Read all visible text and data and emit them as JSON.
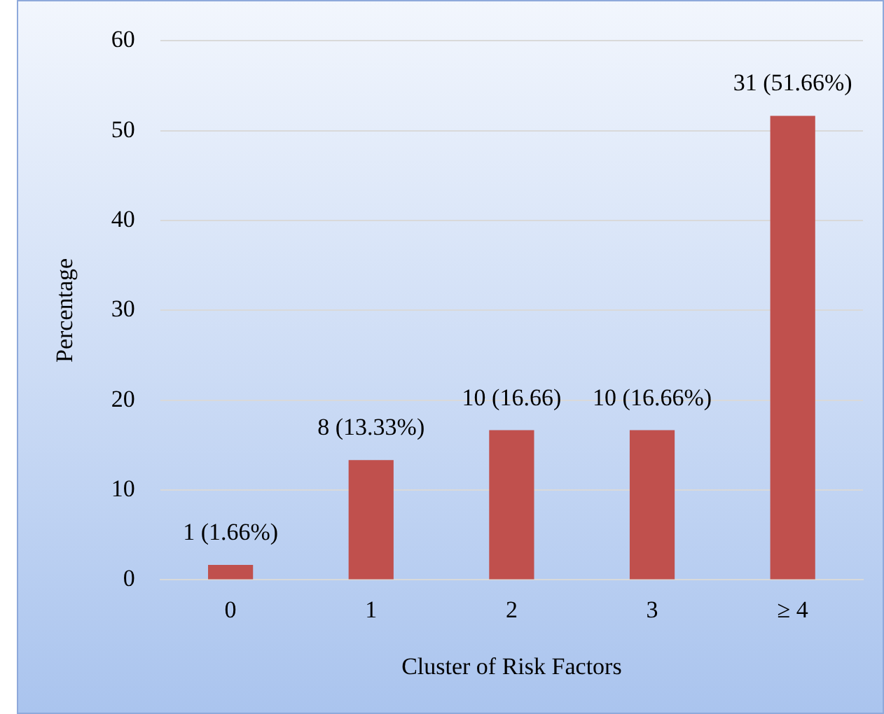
{
  "chart_data": {
    "type": "bar",
    "xlabel": "Cluster of Risk Factors",
    "ylabel": "Percentage",
    "categories": [
      "0",
      "1",
      "2",
      "3",
      "≥ 4"
    ],
    "values": [
      1.66,
      13.33,
      16.66,
      16.66,
      51.66
    ],
    "value_labels": [
      "1 (1.66%)",
      "8 (13.33%)",
      "10 (16.66)",
      "10 (16.66%)",
      "31 (51.66%)"
    ],
    "color": "#c0504d",
    "ylim": [
      0,
      60
    ],
    "yticks": [
      0,
      10,
      20,
      30,
      40,
      50,
      60
    ],
    "grid": "y",
    "legend": false
  }
}
